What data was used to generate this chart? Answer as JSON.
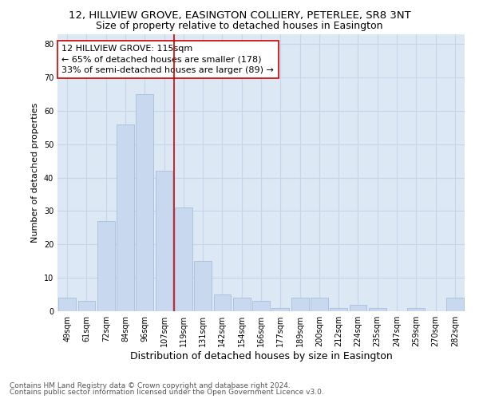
{
  "title1": "12, HILLVIEW GROVE, EASINGTON COLLIERY, PETERLEE, SR8 3NT",
  "title2": "Size of property relative to detached houses in Easington",
  "xlabel": "Distribution of detached houses by size in Easington",
  "ylabel": "Number of detached properties",
  "categories": [
    "49sqm",
    "61sqm",
    "72sqm",
    "84sqm",
    "96sqm",
    "107sqm",
    "119sqm",
    "131sqm",
    "142sqm",
    "154sqm",
    "166sqm",
    "177sqm",
    "189sqm",
    "200sqm",
    "212sqm",
    "224sqm",
    "235sqm",
    "247sqm",
    "259sqm",
    "270sqm",
    "282sqm"
  ],
  "values": [
    4,
    3,
    27,
    56,
    65,
    42,
    31,
    15,
    5,
    4,
    3,
    1,
    4,
    4,
    1,
    2,
    1,
    0,
    1,
    0,
    4
  ],
  "bar_color": "#c8d8ee",
  "bar_edge_color": "#a0b8d8",
  "vline_x": 5,
  "vline_color": "#cc0000",
  "annotation_text": "12 HILLVIEW GROVE: 115sqm\n← 65% of detached houses are smaller (178)\n33% of semi-detached houses are larger (89) →",
  "annotation_box_color": "#ffffff",
  "annotation_box_edge": "#cc0000",
  "ylim": [
    0,
    83
  ],
  "yticks": [
    0,
    10,
    20,
    30,
    40,
    50,
    60,
    70,
    80
  ],
  "grid_color": "#c8d4e8",
  "background_color": "#dde8f5",
  "footer1": "Contains HM Land Registry data © Crown copyright and database right 2024.",
  "footer2": "Contains public sector information licensed under the Open Government Licence v3.0.",
  "title1_fontsize": 9.5,
  "title2_fontsize": 9,
  "xlabel_fontsize": 9,
  "ylabel_fontsize": 8,
  "tick_fontsize": 7,
  "annotation_fontsize": 8,
  "footer_fontsize": 6.5
}
